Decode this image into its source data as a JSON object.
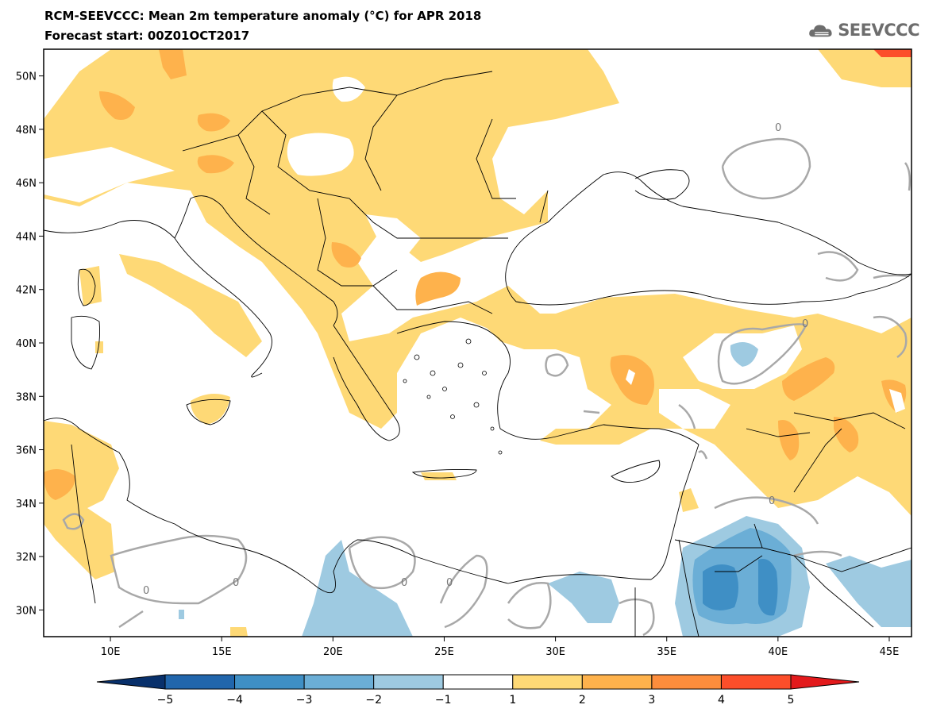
{
  "header": {
    "title": "RCM-SEEVCCC: Mean 2m temperature anomaly (°C) for APR 2018",
    "subtitle": "Forecast start: 00Z01OCT2017"
  },
  "logo": {
    "text": "SEEVCCC",
    "icon": "cloud-logo-icon"
  },
  "map": {
    "lon_range": [
      7,
      46
    ],
    "lat_range": [
      29,
      51
    ],
    "lon_ticks": [
      "10E",
      "15E",
      "20E",
      "25E",
      "30E",
      "35E",
      "40E",
      "45E"
    ],
    "lat_ticks": [
      "50N",
      "48N",
      "46N",
      "44N",
      "42N",
      "40N",
      "38N",
      "36N",
      "34N",
      "32N",
      "30N"
    ],
    "contour_label": "0"
  },
  "colorbar": {
    "labels": [
      "−5",
      "−4",
      "−3",
      "−2",
      "−1",
      "1",
      "2",
      "3",
      "4",
      "5"
    ],
    "colors": [
      "#08306b",
      "#2166ac",
      "#3f8fc5",
      "#6baed6",
      "#9ecae1",
      "#ffffff",
      "#fed976",
      "#feb24c",
      "#fd8d3c",
      "#fc4e2a",
      "#e31a1c"
    ]
  }
}
